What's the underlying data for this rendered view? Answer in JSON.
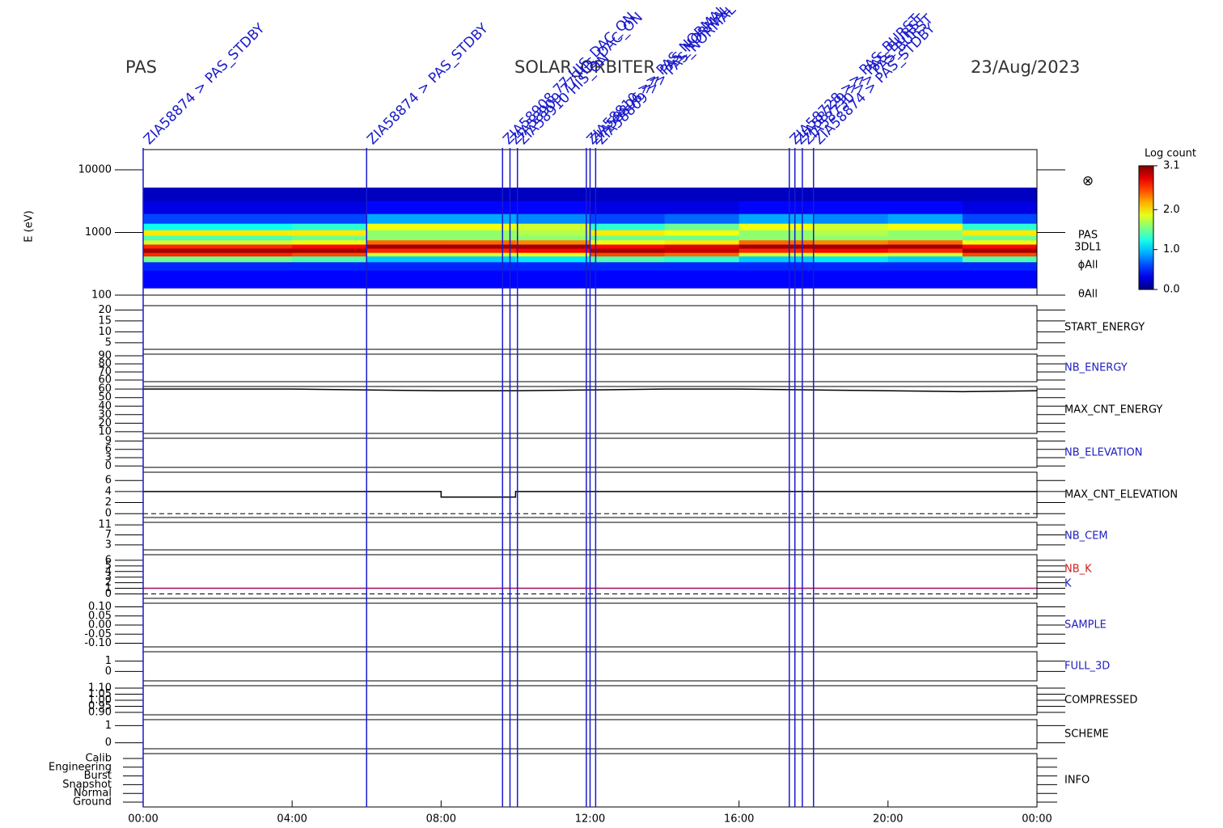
{
  "header": {
    "instrument": "PAS",
    "mission": "SOLAR_ORBITER",
    "date": "23/Aug/2023"
  },
  "time_axis": {
    "xlim": [
      0,
      24
    ],
    "xticks": [
      {
        "value": 0,
        "label": "00:00"
      },
      {
        "value": 4,
        "label": "04:00"
      },
      {
        "value": 8,
        "label": "08:00"
      },
      {
        "value": 12,
        "label": "12:00"
      },
      {
        "value": 16,
        "label": "16:00"
      },
      {
        "value": 20,
        "label": "20:00"
      },
      {
        "value": 24,
        "label": "00:00"
      }
    ]
  },
  "events": [
    {
      "time": 0.0,
      "label": "ZIA58874 > PAS_STDBY"
    },
    {
      "time": 6.0,
      "label": "ZIA58874 > PAS_STDBY"
    },
    {
      "time": 9.65,
      "label": "ZIA58908 77 HIS_DAC_ON"
    },
    {
      "time": 9.85,
      "label": "ZIA58909 77 HIS_DAC_ON"
    },
    {
      "time": 10.05,
      "label": "ZIA58910 HIS_ON"
    },
    {
      "time": 11.9,
      "label": "ZIA58810 >> PAS_NORMAL"
    },
    {
      "time": 12.0,
      "label": "ZIA58806 >> PAS_NORMAL"
    },
    {
      "time": 12.15,
      "label": "ZIA58809 >> PAS_NORMAL"
    },
    {
      "time": 17.35,
      "label": "ZIA58728 >> PAS_BURST"
    },
    {
      "time": 17.5,
      "label": "ZIA58729 >> PAS_BURST"
    },
    {
      "time": 17.7,
      "label": "ZIA58730 >> PAS_BURST"
    },
    {
      "time": 18.0,
      "label": "ZIA58874 > PAS_STDBY"
    }
  ],
  "chart_data": [
    {
      "type": "heatmap",
      "ylabel": "E (eV)",
      "log_y": true,
      "ylim": [
        100,
        21000
      ],
      "yticks": [
        100,
        1000,
        10000
      ],
      "side_labels": [
        "PAS",
        "3DL1",
        "ϕAll",
        "θAll"
      ],
      "flux_symbol": "⊗",
      "colorbar": {
        "title": "Log count",
        "clim": [
          0,
          3.1
        ],
        "ticks": [
          {
            "value": 0,
            "label": "0.0"
          },
          {
            "value": 1,
            "label": "1.0"
          },
          {
            "value": 2,
            "label": "2.0"
          },
          3.1
        ]
      },
      "x_edges": [
        0,
        2,
        4,
        6,
        8,
        10,
        12,
        14,
        16,
        18,
        20,
        22,
        24
      ],
      "y_edges": [
        130,
        180,
        250,
        340,
        420,
        480,
        560,
        650,
        760,
        900,
        1100,
        1400,
        2000,
        3200,
        5200
      ],
      "z": [
        [
          0.4,
          0.4,
          0.5,
          1.5,
          2.6,
          3.0,
          2.6,
          1.8,
          1.4,
          2.0,
          1.2,
          0.6,
          0.3,
          0.2
        ],
        [
          0.4,
          0.4,
          0.5,
          1.5,
          2.6,
          3.0,
          2.6,
          1.8,
          1.4,
          2.0,
          1.2,
          0.6,
          0.3,
          0.2
        ],
        [
          0.4,
          0.4,
          0.5,
          1.4,
          2.5,
          3.0,
          2.7,
          1.9,
          1.5,
          2.0,
          1.3,
          0.6,
          0.3,
          0.2
        ],
        [
          0.4,
          0.4,
          0.5,
          1.0,
          1.8,
          2.6,
          3.0,
          2.4,
          1.6,
          1.6,
          1.9,
          0.9,
          0.4,
          0.2
        ],
        [
          0.4,
          0.4,
          0.5,
          1.0,
          1.8,
          2.6,
          3.0,
          2.4,
          1.6,
          1.6,
          1.9,
          0.9,
          0.4,
          0.2
        ],
        [
          0.4,
          0.4,
          0.5,
          1.1,
          1.9,
          2.7,
          3.0,
          2.3,
          1.6,
          1.7,
          1.8,
          0.8,
          0.4,
          0.2
        ],
        [
          0.4,
          0.4,
          0.5,
          1.4,
          2.5,
          3.0,
          2.7,
          1.9,
          1.5,
          2.0,
          1.3,
          0.6,
          0.3,
          0.2
        ],
        [
          0.4,
          0.4,
          0.5,
          1.3,
          2.4,
          2.9,
          2.8,
          2.0,
          1.5,
          1.9,
          1.5,
          0.7,
          0.3,
          0.2
        ],
        [
          0.4,
          0.4,
          0.5,
          1.0,
          1.8,
          2.6,
          3.0,
          2.4,
          1.6,
          1.6,
          1.9,
          0.9,
          0.4,
          0.2
        ],
        [
          0.4,
          0.4,
          0.5,
          1.1,
          1.9,
          2.7,
          3.0,
          2.3,
          1.6,
          1.7,
          1.8,
          0.8,
          0.4,
          0.2
        ],
        [
          0.4,
          0.4,
          0.5,
          1.0,
          1.8,
          2.6,
          3.0,
          2.4,
          1.6,
          1.6,
          1.9,
          0.9,
          0.4,
          0.2
        ],
        [
          0.4,
          0.4,
          0.5,
          1.4,
          2.5,
          3.0,
          2.7,
          1.9,
          1.5,
          2.0,
          1.3,
          0.6,
          0.3,
          0.2
        ]
      ]
    },
    {
      "type": "line",
      "labels": [
        {
          "text": "START_ENERGY",
          "color": "#000000"
        }
      ],
      "ylim": [
        2,
        22
      ],
      "yticks": [
        5,
        10,
        15,
        20
      ]
    },
    {
      "type": "line",
      "labels": [
        {
          "text": "NB_ENERGY",
          "color": "#2020c0"
        }
      ],
      "ylim": [
        58,
        92
      ],
      "yticks": [
        60,
        70,
        80,
        90
      ]
    },
    {
      "type": "line",
      "labels": [
        {
          "text": "MAX_CNT_ENERGY",
          "color": "#000000"
        }
      ],
      "ylim": [
        8,
        63
      ],
      "yticks": [
        10,
        20,
        30,
        40,
        50,
        60
      ],
      "x": [
        0,
        2,
        4,
        6,
        8,
        10,
        12,
        14,
        16,
        18,
        20,
        22,
        24
      ],
      "values": [
        60,
        60,
        60,
        59,
        58,
        58,
        59,
        60,
        60,
        59,
        58,
        57,
        58
      ],
      "color": "#000000"
    },
    {
      "type": "line",
      "labels": [
        {
          "text": "NB_ELEVATION",
          "color": "#2020c0"
        }
      ],
      "ylim": [
        -0.5,
        10
      ],
      "yticks": [
        0,
        3,
        6,
        9
      ]
    },
    {
      "type": "step",
      "labels": [
        {
          "text": "MAX_CNT_ELEVATION",
          "color": "#000000"
        }
      ],
      "ylim": [
        -0.7,
        7.5
      ],
      "yticks": [
        0,
        2,
        4,
        6
      ],
      "zero_dashed": true,
      "x": [
        0,
        2,
        4,
        6,
        8,
        10,
        12,
        14,
        16,
        18,
        20,
        22,
        24
      ],
      "values": [
        4,
        4,
        4,
        4,
        3,
        4,
        4,
        4,
        4,
        4,
        4,
        4,
        4
      ],
      "color": "#000000"
    },
    {
      "type": "line",
      "labels": [
        {
          "text": "NB_CEM",
          "color": "#2020c0"
        }
      ],
      "ylim": [
        1,
        12
      ],
      "yticks": [
        3,
        7,
        11
      ]
    },
    {
      "type": "line",
      "labels": [
        {
          "text": "NB_K",
          "color": "#d02020"
        },
        {
          "text": "K",
          "color": "#2020c0"
        }
      ],
      "ylim": [
        -0.8,
        7
      ],
      "yticks": [
        0,
        1,
        2,
        3,
        4,
        5,
        6
      ],
      "zero_dashed": true,
      "x": [
        0,
        24
      ],
      "values": [
        1,
        1
      ],
      "color": "#a01060"
    },
    {
      "type": "line",
      "labels": [
        {
          "text": "SAMPLE",
          "color": "#2020c0"
        }
      ],
      "ylim": [
        -0.12,
        0.12
      ],
      "yticks": [
        {
          "value": -0.1,
          "label": "-0.10"
        },
        {
          "value": -0.05,
          "label": "-0.05"
        },
        {
          "value": 0,
          "label": "0.00"
        },
        {
          "value": 0.05,
          "label": "0.05"
        },
        {
          "value": 0.1,
          "label": "0.10"
        }
      ]
    },
    {
      "type": "line",
      "labels": [
        {
          "text": "FULL_3D",
          "color": "#2020c0"
        }
      ],
      "ylim": [
        -0.9,
        1.9
      ],
      "yticks": [
        0,
        1
      ]
    },
    {
      "type": "line",
      "labels": [
        {
          "text": "COMPRESSED",
          "color": "#000000"
        }
      ],
      "ylim": [
        0.88,
        1.12
      ],
      "yticks": [
        {
          "value": 0.9,
          "label": "0.90"
        },
        {
          "value": 0.95,
          "label": "0.95"
        },
        {
          "value": 1,
          "label": "1.00"
        },
        {
          "value": 1.05,
          "label": "1.05"
        },
        {
          "value": 1.1,
          "label": "1.10"
        }
      ]
    },
    {
      "type": "line",
      "labels": [
        {
          "text": "SCHEME",
          "color": "#000000"
        }
      ],
      "ylim": [
        -0.35,
        1.35
      ],
      "yticks": [
        0,
        1
      ]
    },
    {
      "type": "categorical",
      "labels": [
        {
          "text": "INFO",
          "color": "#000000"
        }
      ],
      "categories": [
        "Ground",
        "Normal",
        "Snapshot",
        "Burst",
        "Engineering",
        "Calib"
      ]
    }
  ]
}
